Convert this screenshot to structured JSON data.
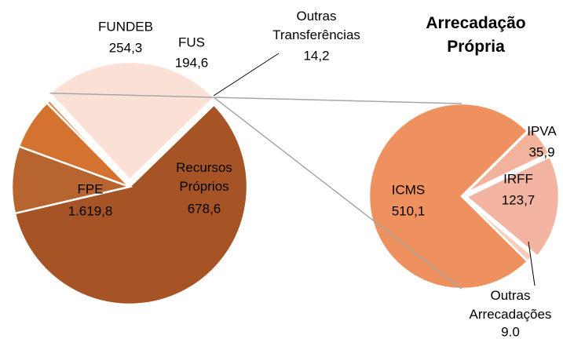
{
  "chart_data": [
    {
      "type": "pie",
      "categories": [
        "FPE",
        "FUNDEB",
        "FUS",
        "Outras Transferências",
        "Recursos Próprios"
      ],
      "values": [
        1619.8,
        254.3,
        194.6,
        14.2,
        678.6
      ],
      "value_labels": [
        "1.619,8",
        "254,3",
        "194,6",
        "14,2",
        "678,6"
      ],
      "colors": [
        "#a65426",
        "#b8642f",
        "#d4722f",
        "#e08a52",
        "#fbe0d6"
      ]
    },
    {
      "type": "pie",
      "title": "Arrecadação Própria",
      "categories": [
        "ICMS",
        "IPVA",
        "IRFF",
        "Outras Arrecadações"
      ],
      "values": [
        510.1,
        35.9,
        123.7,
        9.0
      ],
      "value_labels": [
        "510,1",
        "35,9",
        "123,7",
        "9.0"
      ],
      "colors": [
        "#ee915e",
        "#f3b29c",
        "#f3b5a2",
        "#f7cdbd"
      ]
    }
  ]
}
